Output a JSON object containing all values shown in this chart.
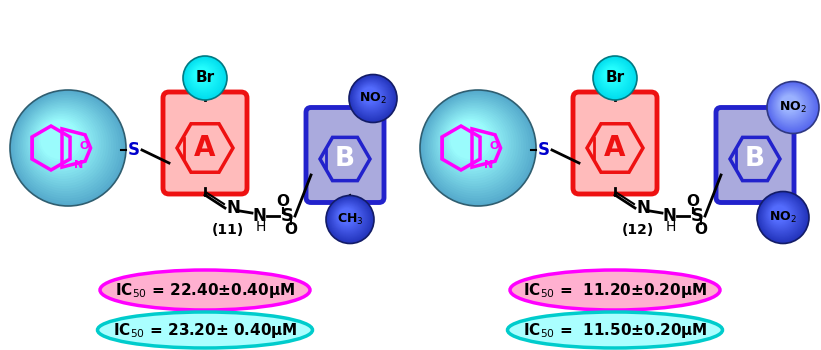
{
  "compound11": {
    "label": "(11)",
    "ic50_pink": "IC$_{50}$ = 22.40±0.40μM",
    "ic50_cyan": "IC$_{50}$ = 23.20± 0.40μM"
  },
  "compound12": {
    "label": "(12)",
    "ic50_pink": "IC$_{50}$ =  11.20±0.20μM",
    "ic50_cyan": "IC$_{50}$ =  11.50±0.20μM"
  },
  "colors": {
    "pink_fill": "#FFB0D0",
    "pink_edge": "#FF00FF",
    "cyan_fill": "#AAFFFF",
    "cyan_edge": "#00CCCC",
    "red_ring": "#EE1111",
    "red_ring_fill": "#FFBBBB",
    "blue_ring": "#2222CC",
    "blue_ring_fill": "#AAAADD",
    "cyan_ball_color": "#00DDEE",
    "blue_ball_dark": "#2233BB",
    "blue_ball_light": "#5566EE",
    "big_ball_base": "#55AACC",
    "magenta": "#FF00FF",
    "background": "#FFFFFF"
  }
}
